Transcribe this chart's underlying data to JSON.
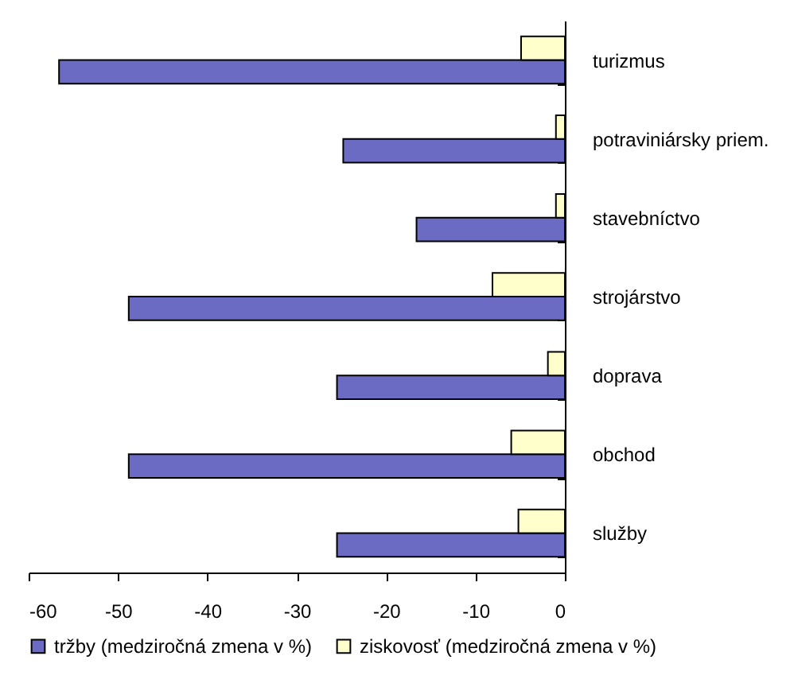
{
  "chart_data": {
    "type": "bar",
    "orientation": "horizontal",
    "categories": [
      "turizmus",
      "potraviniársky priem.",
      "stavebníctvo",
      "strojárstvo",
      "doprava",
      "obchod",
      "služby"
    ],
    "series": [
      {
        "name": "tržby (medziročná zmena v %)",
        "color": "#6b6bc4",
        "values": [
          -56.6,
          -24.8,
          -16.6,
          -48.8,
          -25.5,
          -48.8,
          -25.5
        ]
      },
      {
        "name": "ziskovosť (medziročná zmena v %)",
        "color": "#ffffcc",
        "values": [
          -4.9,
          -1.0,
          -1.0,
          -8.1,
          -1.9,
          -6.0,
          -5.2
        ]
      }
    ],
    "xlim": [
      -60,
      0
    ],
    "xticks": [
      -60,
      -50,
      -40,
      -30,
      -20,
      -10,
      0
    ],
    "legend": "bottom"
  }
}
